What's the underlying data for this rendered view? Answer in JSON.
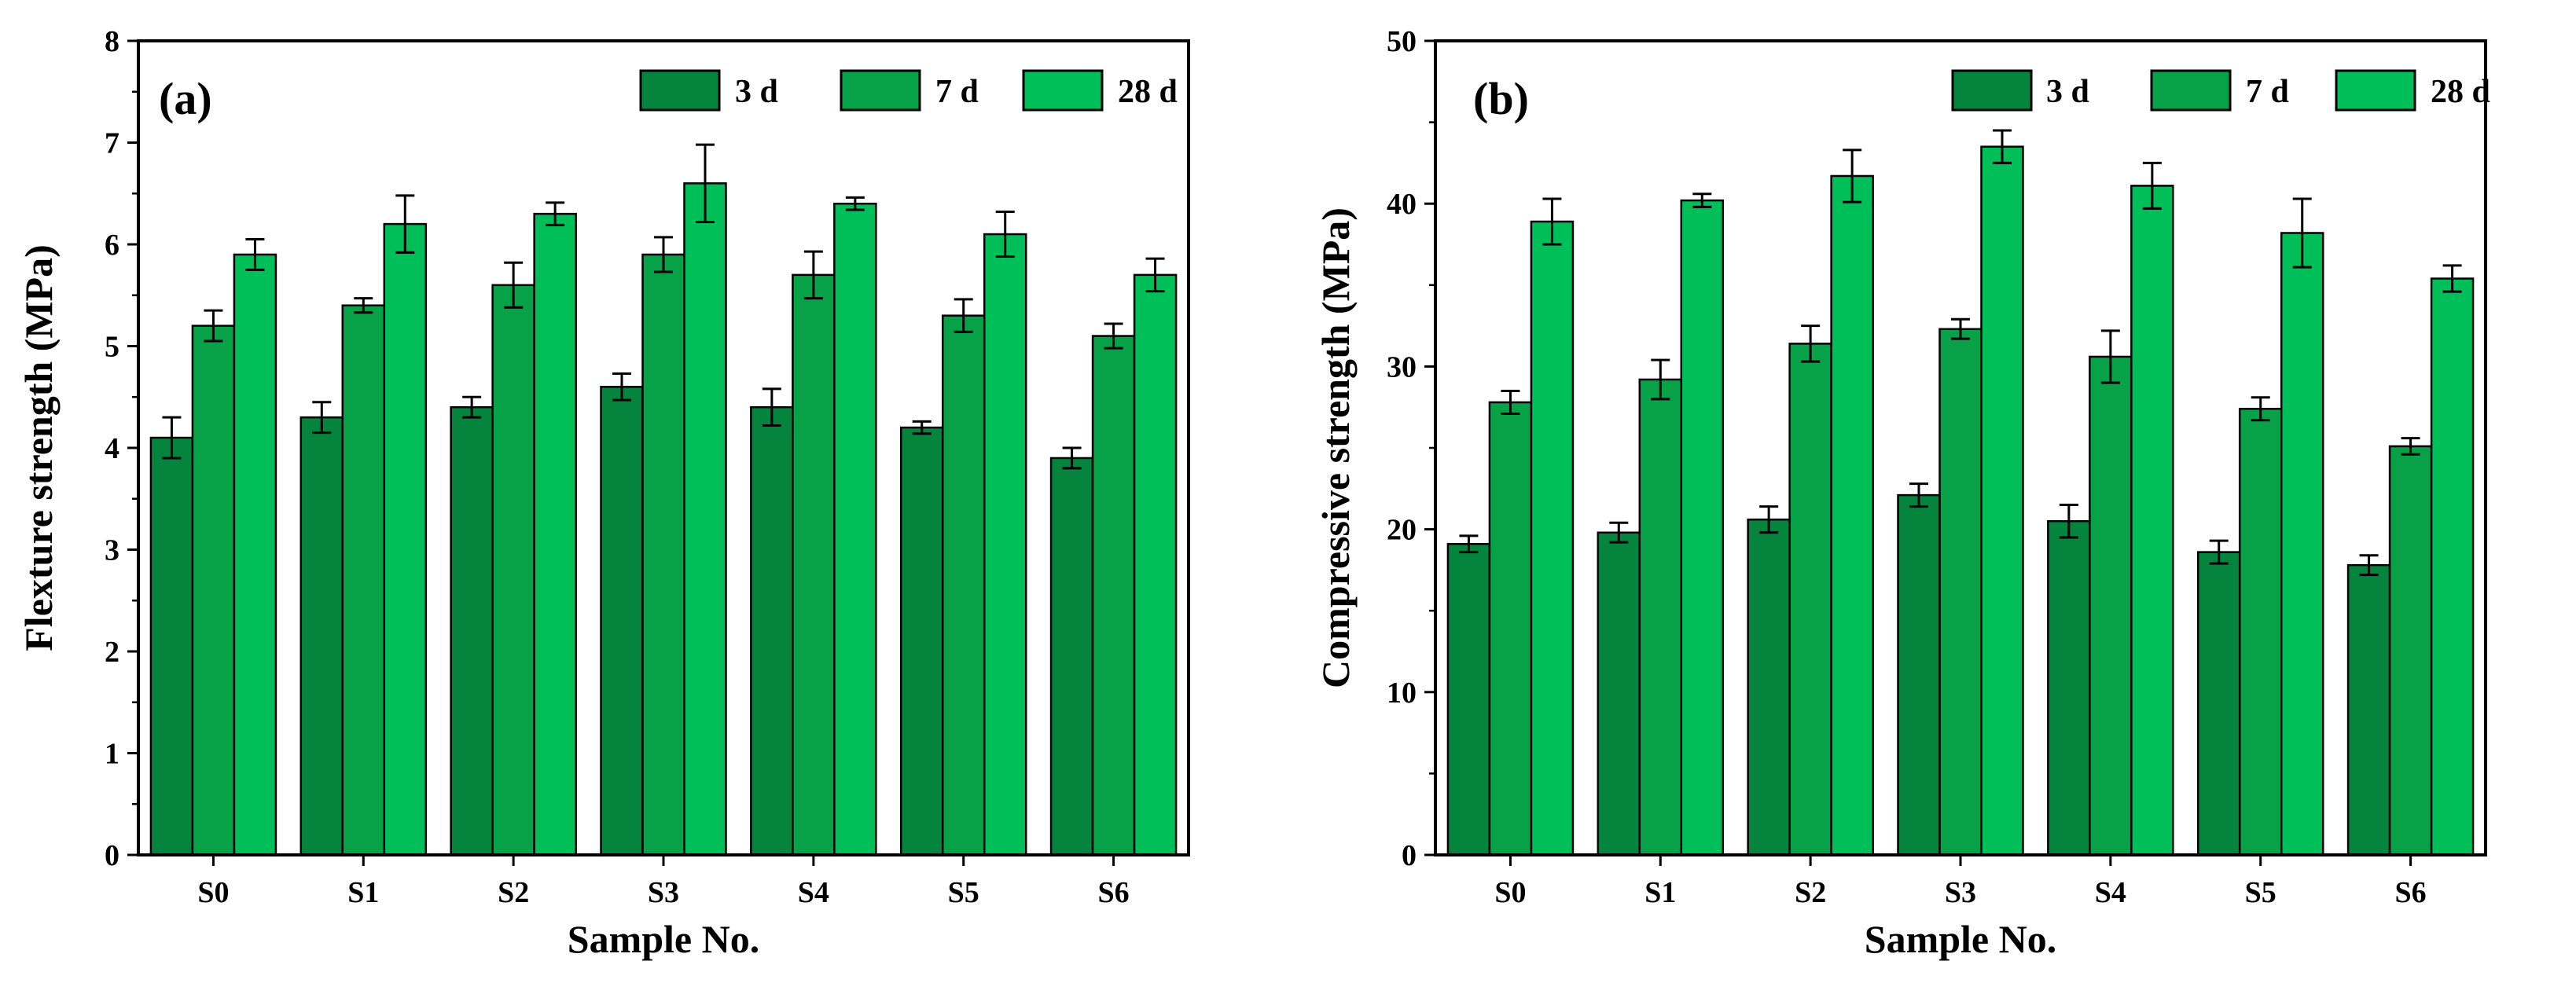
{
  "chart_data": [
    {
      "type": "bar",
      "panel_label": "(a)",
      "categories": [
        "S0",
        "S1",
        "S2",
        "S3",
        "S4",
        "S5",
        "S6"
      ],
      "xlabel": "Sample No.",
      "ylabel": "Flexture strength (MPa)",
      "ylim": [
        0,
        8
      ],
      "yticks": [
        0,
        1,
        2,
        3,
        4,
        5,
        6,
        7,
        8
      ],
      "legend_position": "top-right",
      "series": [
        {
          "name": "3 d",
          "color": "#04843d",
          "values": [
            4.1,
            4.3,
            4.4,
            4.6,
            4.4,
            4.2,
            3.9
          ],
          "errors": [
            0.2,
            0.15,
            0.1,
            0.13,
            0.18,
            0.06,
            0.1
          ]
        },
        {
          "name": "7 d",
          "color": "#07a148",
          "values": [
            5.2,
            5.4,
            5.6,
            5.9,
            5.7,
            5.3,
            5.1
          ],
          "errors": [
            0.15,
            0.07,
            0.22,
            0.17,
            0.23,
            0.16,
            0.12
          ]
        },
        {
          "name": "28 d",
          "color": "#00bf58",
          "values": [
            5.9,
            6.2,
            6.3,
            6.6,
            6.4,
            6.1,
            5.7
          ],
          "errors": [
            0.15,
            0.28,
            0.11,
            0.38,
            0.06,
            0.22,
            0.16
          ]
        }
      ]
    },
    {
      "type": "bar",
      "panel_label": "(b)",
      "categories": [
        "S0",
        "S1",
        "S2",
        "S3",
        "S4",
        "S5",
        "S6"
      ],
      "xlabel": "Sample No.",
      "ylabel": "Compressive strength (MPa)",
      "ylim": [
        0,
        50
      ],
      "yticks": [
        0,
        10,
        20,
        30,
        40,
        50
      ],
      "legend_position": "top-right",
      "series": [
        {
          "name": "3 d",
          "color": "#04843d",
          "values": [
            19.1,
            19.8,
            20.6,
            22.1,
            20.5,
            18.6,
            17.8
          ],
          "errors": [
            0.5,
            0.6,
            0.8,
            0.7,
            1.0,
            0.7,
            0.6
          ]
        },
        {
          "name": "7 d",
          "color": "#07a148",
          "values": [
            27.8,
            29.2,
            31.4,
            32.3,
            30.6,
            27.4,
            25.1
          ],
          "errors": [
            0.7,
            1.2,
            1.1,
            0.6,
            1.6,
            0.7,
            0.5
          ]
        },
        {
          "name": "28 d",
          "color": "#00bf58",
          "values": [
            38.9,
            40.2,
            41.7,
            43.5,
            41.1,
            38.2,
            35.4
          ],
          "errors": [
            1.4,
            0.4,
            1.6,
            1.0,
            1.4,
            2.1,
            0.8
          ]
        }
      ]
    }
  ]
}
